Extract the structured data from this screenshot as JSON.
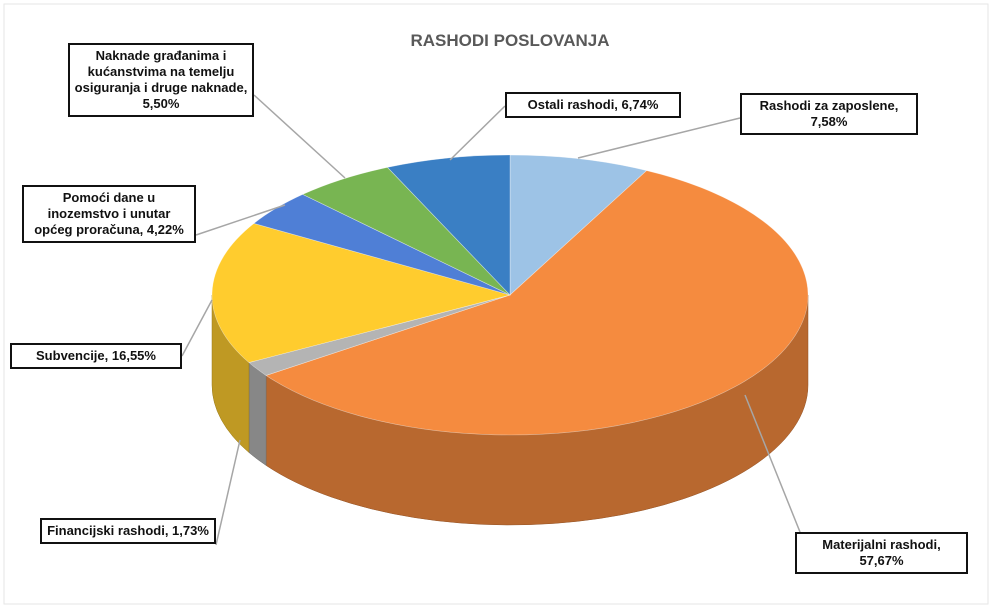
{
  "chart_data": {
    "type": "pie3d",
    "title": "RASHODI POSLOVANJA",
    "values": [
      7.58,
      57.67,
      1.73,
      16.55,
      4.22,
      5.5,
      6.74
    ],
    "value_labels": [
      "Rashodi za zaposlene, 7,58%",
      "Materijalni rashodi, 57,67%",
      "Financijski rashodi, 1,73%",
      "Subvencije, 16,55%",
      "Pomoći dane u inozemstvo i unutar općeg proračuna, 4,22%",
      "Naknade građanima i kućanstvima na temelju osiguranja i druge naknade, 5,50%",
      "Ostali rashodi, 6,74%"
    ],
    "colors": [
      "#9dc3e6",
      "#f58b3f",
      "#b4b4b4",
      "#ffcc2e",
      "#4f7fd6",
      "#78b552",
      "#3a7fc4"
    ]
  }
}
